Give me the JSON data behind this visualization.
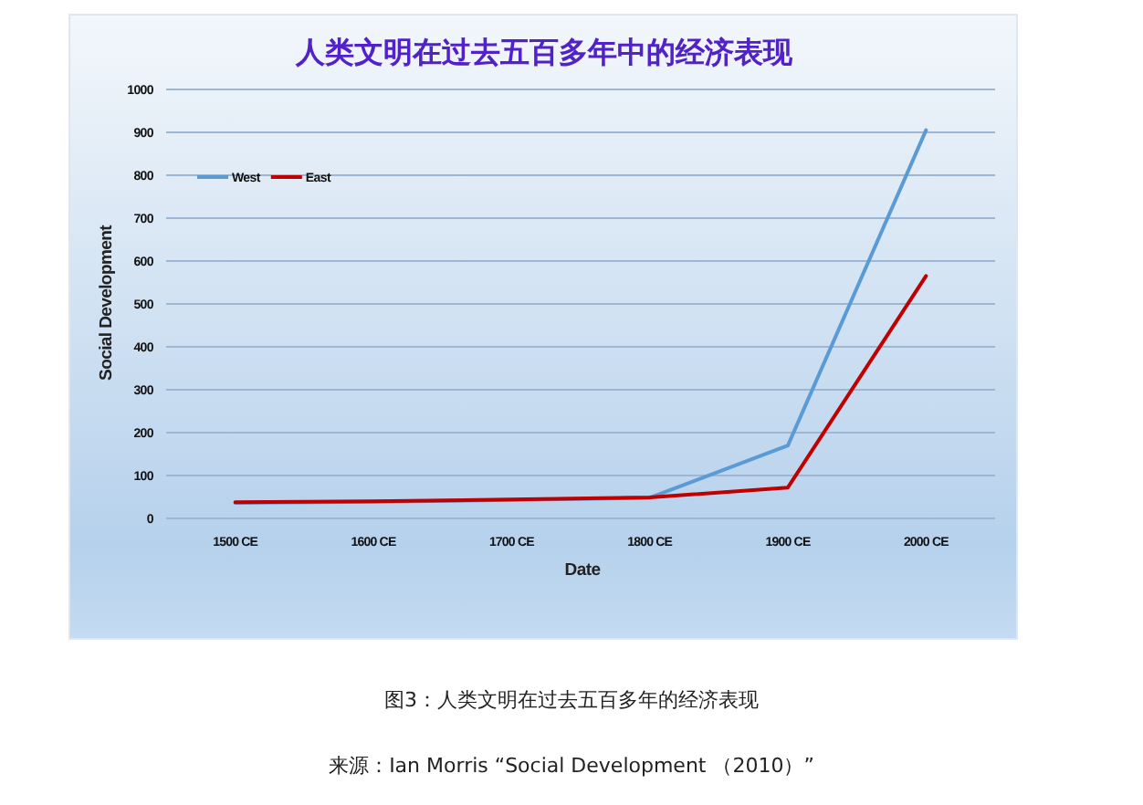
{
  "chart_data": {
    "type": "line",
    "title": "人类文明在过去五百多年中的经济表现",
    "xlabel": "Date",
    "ylabel": "Social Development",
    "categories": [
      "1500 CE",
      "1600 CE",
      "1700 CE",
      "1800 CE",
      "1900 CE",
      "2000 CE"
    ],
    "series": [
      {
        "name": "West",
        "color": "#5b9bd5",
        "values": [
          36,
          39,
          43,
          48,
          170,
          905
        ]
      },
      {
        "name": "East",
        "color": "#c00000",
        "values": [
          38,
          40,
          44,
          49,
          72,
          565
        ]
      }
    ],
    "ylim": [
      0,
      1000
    ],
    "yticks": [
      0,
      100,
      200,
      300,
      400,
      500,
      600,
      700,
      800,
      900,
      1000
    ],
    "grid": "y",
    "legend": "top left",
    "annotations": [
      "图3：人类文明在过去五百多年的经济表现",
      "来源：Ian Morris “Social Development （2010）”"
    ]
  }
}
